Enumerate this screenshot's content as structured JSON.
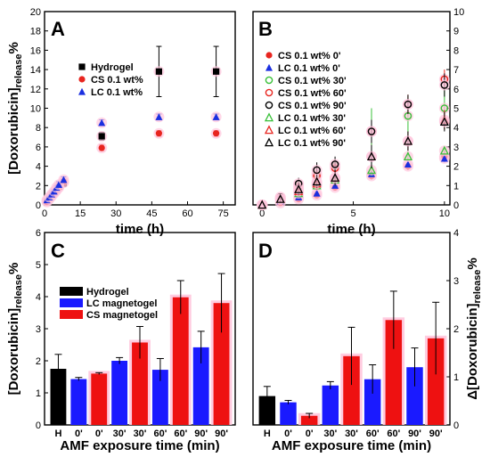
{
  "chart_data": [
    {
      "panel": "A",
      "type": "scatter",
      "xlabel": "time (h)",
      "ylabel": "[Doxorubicin]",
      "ylabel_sub": "release",
      "ylabel_suffix": "%",
      "xlim": [
        0,
        80
      ],
      "ylim": [
        0,
        20
      ],
      "xticks": [
        0,
        15,
        30,
        45,
        60,
        75
      ],
      "yticks": [
        0,
        2,
        4,
        6,
        8,
        10,
        12,
        14,
        16,
        18,
        20
      ],
      "legend_position": "top-left",
      "series": [
        {
          "name": "Hydrogel",
          "color": "#000000",
          "marker": "square",
          "x": [
            1,
            2,
            3,
            4,
            5,
            6,
            8,
            24,
            48,
            72
          ],
          "y": [
            0.4,
            0.7,
            1.0,
            1.3,
            1.6,
            1.9,
            2.3,
            7.1,
            13.8,
            13.8
          ],
          "err": [
            0.1,
            0.1,
            0.2,
            0.2,
            0.3,
            0.3,
            0.4,
            0.4,
            2.6,
            2.6
          ]
        },
        {
          "name": "CS 0.1 wt%",
          "color": "#e8251f",
          "marker": "circle",
          "x": [
            1,
            2,
            3,
            4,
            5,
            6,
            8,
            24,
            48,
            72
          ],
          "y": [
            0.3,
            0.6,
            0.9,
            1.2,
            1.5,
            1.8,
            2.4,
            5.9,
            7.4,
            7.4
          ],
          "err": [
            0.1,
            0.1,
            0.1,
            0.2,
            0.2,
            0.2,
            0.3,
            0.3,
            0.3,
            0.3
          ]
        },
        {
          "name": "LC 0.1 wt%",
          "color": "#1a2fe0",
          "marker": "triangle",
          "x": [
            1,
            2,
            3,
            4,
            5,
            6,
            8,
            24,
            48,
            72
          ],
          "y": [
            0.5,
            0.8,
            1.1,
            1.4,
            1.8,
            2.1,
            2.6,
            8.5,
            9.1,
            9.1
          ],
          "err": [
            0.1,
            0.1,
            0.2,
            0.2,
            0.2,
            0.3,
            0.3,
            0.3,
            0.3,
            0.3
          ]
        }
      ]
    },
    {
      "panel": "B",
      "type": "scatter",
      "xlabel": "time (h)",
      "xlim": [
        -0.5,
        10.3
      ],
      "ylim": [
        0,
        10
      ],
      "xticks": [
        0,
        5,
        10
      ],
      "yticks": [
        0,
        1,
        2,
        3,
        4,
        5,
        6,
        7,
        8,
        9,
        10
      ],
      "x": [
        0,
        1,
        2,
        3,
        4,
        6,
        8,
        10
      ],
      "legend_position": "top-left",
      "series": [
        {
          "name": "CS 0.1 wt% 0'",
          "color": "#e8251f",
          "marker": "circle",
          "y": [
            0,
            0.1,
            0.3,
            0.5,
            0.9,
            1.5,
            2.0,
            2.5
          ],
          "err": [
            0,
            0.1,
            0.1,
            0.1,
            0.1,
            0.2,
            0.2,
            0.2
          ]
        },
        {
          "name": "LC 0.1 wt% 0'",
          "color": "#1a2fe0",
          "marker": "triangle",
          "y": [
            0,
            0.2,
            0.4,
            0.6,
            1.0,
            1.6,
            2.1,
            2.4
          ],
          "err": [
            0,
            0.1,
            0.1,
            0.1,
            0.1,
            0.2,
            0.2,
            0.2
          ]
        },
        {
          "name": "CS 0.1 wt% 30'",
          "color": "#38c038",
          "marker": "circle-open",
          "y": [
            0,
            0.4,
            1.0,
            1.6,
            2.0,
            3.8,
            4.6,
            5.0
          ],
          "err": [
            0,
            0.2,
            0.3,
            0.4,
            0.4,
            1.2,
            1.0,
            1.1
          ]
        },
        {
          "name": "CS 0.1 wt% 60'",
          "color": "#e8251f",
          "marker": "circle-open",
          "y": [
            0,
            0.3,
            0.9,
            1.5,
            1.9,
            3.8,
            5.2,
            6.5
          ],
          "err": [
            0,
            0.2,
            0.3,
            0.3,
            0.4,
            0.6,
            0.5,
            0.5
          ]
        },
        {
          "name": "CS 0.1 wt% 90'",
          "color": "#000000",
          "marker": "circle-open",
          "y": [
            0,
            0.4,
            1.1,
            1.8,
            2.1,
            3.8,
            5.2,
            6.2
          ],
          "err": [
            0,
            0.2,
            0.3,
            0.4,
            0.4,
            0.6,
            0.5,
            0.6
          ]
        },
        {
          "name": "LC 0.1 wt% 30'",
          "color": "#38c038",
          "marker": "triangle-open",
          "y": [
            0,
            0.3,
            0.6,
            1.0,
            1.3,
            1.8,
            2.5,
            2.8
          ],
          "err": [
            0,
            0.1,
            0.2,
            0.2,
            0.3,
            0.3,
            0.2,
            0.2
          ]
        },
        {
          "name": "LC 0.1 wt% 60'",
          "color": "#e8251f",
          "marker": "triangle-open",
          "y": [
            0,
            0.3,
            0.7,
            1.1,
            1.4,
            2.5,
            3.3,
            4.4
          ],
          "err": [
            0,
            0.1,
            0.2,
            0.3,
            0.3,
            0.6,
            0.5,
            0.5
          ]
        },
        {
          "name": "LC 0.1 wt% 90'",
          "color": "#000000",
          "marker": "triangle-open",
          "y": [
            0,
            0.3,
            0.8,
            1.2,
            1.4,
            2.5,
            3.3,
            4.3
          ],
          "err": [
            0,
            0.2,
            0.3,
            0.3,
            0.4,
            0.6,
            0.5,
            0.5
          ]
        }
      ]
    },
    {
      "panel": "C",
      "type": "bar",
      "xlabel": "AMF exposure time (min)",
      "ylabel": "[Doxorubicin]",
      "ylabel_sub": "release",
      "ylabel_suffix": "%",
      "ylim": [
        0,
        6
      ],
      "yticks": [
        0,
        1,
        2,
        3,
        4,
        5,
        6
      ],
      "categories": [
        "H",
        "0'",
        "0'",
        "30'",
        "30'",
        "60'",
        "60'",
        "90'",
        "90'"
      ],
      "values": [
        1.75,
        1.43,
        1.6,
        2.0,
        2.57,
        1.72,
        3.98,
        2.42,
        3.8
      ],
      "errors": [
        0.45,
        0.05,
        0.03,
        0.1,
        0.5,
        0.35,
        0.52,
        0.5,
        0.92
      ],
      "groups": [
        "Hydrogel",
        "LC magnetogel",
        "CS magnetogel",
        "LC magnetogel",
        "CS magnetogel",
        "LC magnetogel",
        "CS magnetogel",
        "LC magnetogel",
        "CS magnetogel"
      ],
      "legend": [
        {
          "name": "Hydrogel",
          "color": "#000000"
        },
        {
          "name": "LC magnetogel",
          "color": "#1a1aff"
        },
        {
          "name": "CS magnetogel",
          "color": "#ee1111"
        }
      ],
      "legend_position": "top-left"
    },
    {
      "panel": "D",
      "type": "bar",
      "xlabel": "AMF exposure time (min)",
      "ylabel": "Δ[Doxorubicin]",
      "ylabel_sub": "release",
      "ylabel_suffix": "%",
      "ylim": [
        0,
        4
      ],
      "yticks": [
        0,
        1,
        2,
        3,
        4
      ],
      "categories": [
        "H",
        "0'",
        "0'",
        "30'",
        "30'",
        "60'",
        "60'",
        "90'",
        "90'"
      ],
      "values": [
        0.6,
        0.47,
        0.19,
        0.82,
        1.43,
        0.95,
        2.18,
        1.2,
        1.8
      ],
      "errors": [
        0.2,
        0.04,
        0.05,
        0.08,
        0.6,
        0.3,
        0.6,
        0.4,
        0.75
      ],
      "groups": [
        "Hydrogel",
        "LC magnetogel",
        "CS magnetogel",
        "LC magnetogel",
        "CS magnetogel",
        "LC magnetogel",
        "CS magnetogel",
        "LC magnetogel",
        "CS magnetogel"
      ]
    }
  ],
  "colors": {
    "hydrogel": "#000000",
    "lc_bar": "#1a1aff",
    "cs_bar": "#ee1111",
    "halo": "#ffc6dd"
  }
}
